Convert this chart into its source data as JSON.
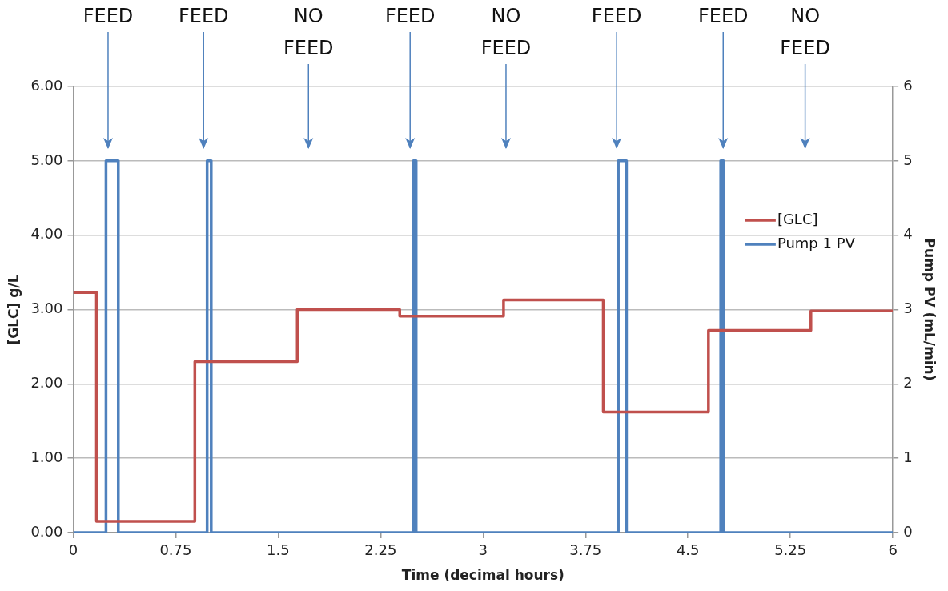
{
  "chart_data": {
    "type": "step",
    "xlabel": "Time (decimal hours)",
    "ylabel": "[GLC] g/L",
    "y2label": "Pump PV (mL/min)",
    "series": [
      {
        "name": "[GLC]",
        "color": "#c0504d",
        "x": [
          0,
          0.17,
          0.89,
          1.64,
          2.39,
          3.15,
          3.88,
          4.65,
          5.4,
          6
        ],
        "values": [
          3.23,
          0.15,
          2.3,
          3.0,
          2.91,
          3.13,
          1.62,
          2.72,
          2.98,
          2.98
        ]
      },
      {
        "name": "Pump 1 PV",
        "color": "#4f81bd",
        "axis": "y2",
        "x": [
          0,
          0.24,
          0.33,
          0.98,
          1.01,
          2.49,
          2.51,
          3.99,
          4.05,
          4.74,
          4.76,
          6
        ],
        "values": [
          0,
          5,
          0,
          5,
          0,
          5,
          0,
          5,
          0,
          5,
          0,
          0
        ]
      }
    ],
    "xlim": [
      0,
      6
    ],
    "xticks": [
      0,
      0.75,
      1.5,
      2.25,
      3,
      3.75,
      4.5,
      5.25,
      6
    ],
    "ylim": [
      0,
      6
    ],
    "yticks": [
      {
        "value": 0,
        "label": "0.00"
      },
      {
        "value": 1,
        "label": "1.00"
      },
      {
        "value": 2,
        "label": "2.00"
      },
      {
        "value": 3,
        "label": "3.00"
      },
      {
        "value": 4,
        "label": "4.00"
      },
      {
        "value": 5,
        "label": "5.00"
      },
      {
        "value": 6,
        "label": "6.00"
      }
    ],
    "y2lim": [
      0,
      6
    ],
    "y2ticks": [
      0,
      1,
      2,
      3,
      4,
      5,
      6
    ],
    "annotations": [
      "FEED",
      "FEED",
      "NO FEED",
      "FEED",
      "NO FEED",
      "FEED",
      "FEED",
      "NO FEED"
    ],
    "grid": "y",
    "legend": "right",
    "marker": "none",
    "line_style": "solid"
  }
}
